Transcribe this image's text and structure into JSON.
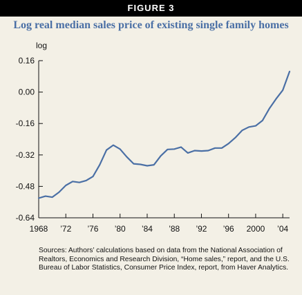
{
  "figure_label": "FIGURE 3",
  "title": "Log real median sales price of existing single family homes",
  "source": "Sources: Authors’ calculations based on data from the National Association of Realtors, Economics and Research Division, “Home sales,” report, and the U.S. Bureau of Labor Statistics, Consumer Price Index, report, from Haver Analytics.",
  "colors": {
    "line": "#4a6fa5",
    "title": "#4a6fa5",
    "background": "#f3f0e6",
    "header": "#000000"
  },
  "chart_data": {
    "type": "line",
    "title": "Log real median sales price of existing single family homes",
    "ylabel": "log",
    "xlabel": "",
    "ylim": [
      -0.64,
      0.16
    ],
    "xlim": [
      1968,
      2005
    ],
    "grid": false,
    "legend": "none",
    "y_ticks": [
      {
        "value": 0.16,
        "label": "0.16"
      },
      {
        "value": 0.0,
        "label": "0.00"
      },
      {
        "value": -0.16,
        "label": "-0.16"
      },
      {
        "value": -0.32,
        "label": "-0.32"
      },
      {
        "value": -0.48,
        "label": "-0.48"
      },
      {
        "value": -0.64,
        "label": "-0.64"
      }
    ],
    "x_ticks": [
      {
        "value": 1968,
        "label": "1968"
      },
      {
        "value": 1972,
        "label": "’72"
      },
      {
        "value": 1976,
        "label": "’76"
      },
      {
        "value": 1980,
        "label": "’80"
      },
      {
        "value": 1984,
        "label": "’84"
      },
      {
        "value": 1988,
        "label": "’88"
      },
      {
        "value": 1992,
        "label": "’92"
      },
      {
        "value": 1996,
        "label": "’96"
      },
      {
        "value": 2000,
        "label": "2000"
      },
      {
        "value": 2004,
        "label": "’04"
      }
    ],
    "series": [
      {
        "x": [
          1968,
          1969,
          1970,
          1971,
          1972,
          1973,
          1974,
          1975,
          1976,
          1977,
          1978,
          1979,
          1980,
          1981,
          1982,
          1983,
          1984,
          1985,
          1986,
          1987,
          1988,
          1989,
          1990,
          1991,
          1992,
          1993,
          1994,
          1995,
          1996,
          1997,
          1998,
          1999,
          2000,
          2001,
          2002,
          2003,
          2004,
          2005
        ],
        "values": [
          -0.54,
          -0.53,
          -0.535,
          -0.51,
          -0.475,
          -0.455,
          -0.46,
          -0.45,
          -0.43,
          -0.37,
          -0.295,
          -0.27,
          -0.29,
          -0.33,
          -0.365,
          -0.368,
          -0.375,
          -0.37,
          -0.325,
          -0.292,
          -0.29,
          -0.28,
          -0.31,
          -0.298,
          -0.3,
          -0.298,
          -0.285,
          -0.285,
          -0.262,
          -0.232,
          -0.195,
          -0.178,
          -0.172,
          -0.145,
          -0.085,
          -0.035,
          0.01,
          0.105
        ]
      }
    ]
  }
}
